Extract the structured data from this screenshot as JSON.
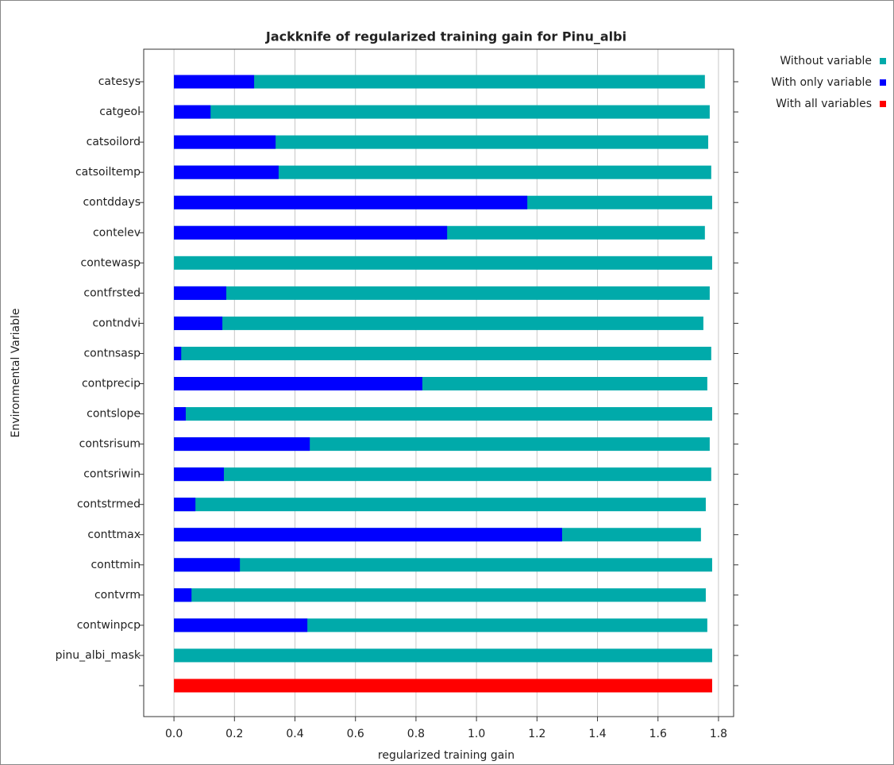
{
  "chart_data": {
    "type": "barh",
    "title": "Jackknife of regularized training gain for Pinu_albi",
    "xlabel": "regularized training gain",
    "ylabel": "Environmental Variable",
    "categories": [
      "catesys",
      "catgeol",
      "catsoilord",
      "catsoiltemp",
      "contddays",
      "contelev",
      "contewasp",
      "contfrsted",
      "contndvi",
      "contnsasp",
      "contprecip",
      "contslope",
      "contsrisum",
      "contsriwin",
      "contstrmed",
      "conttmax",
      "conttmin",
      "contvrm",
      "contwinpcp",
      "pinu_albi_mask",
      null
    ],
    "series": [
      {
        "name": "Without variable",
        "color": "#00aaaa",
        "values": [
          1.755,
          1.771,
          1.766,
          1.776,
          1.779,
          1.755,
          1.779,
          1.771,
          1.75,
          1.776,
          1.763,
          1.779,
          1.771,
          1.776,
          1.758,
          1.742,
          1.779,
          1.758,
          1.763,
          1.779,
          null
        ]
      },
      {
        "name": "With only variable",
        "color": "#0000ff",
        "values": [
          0.265,
          0.121,
          0.336,
          0.346,
          1.168,
          0.903,
          0,
          0.173,
          0.16,
          0.024,
          0.821,
          0.039,
          0.449,
          0.165,
          0.071,
          1.283,
          0.218,
          0.058,
          0.441,
          0,
          null
        ]
      },
      {
        "name": "With all variables",
        "color": "#ff0000",
        "values": [
          null,
          null,
          null,
          null,
          null,
          null,
          null,
          null,
          null,
          null,
          null,
          null,
          null,
          null,
          null,
          null,
          null,
          null,
          null,
          null,
          1.779
        ]
      }
    ],
    "xlim": [
      -0.1,
      1.85
    ],
    "xticks": [
      {
        "value": 0,
        "label": "0.0"
      },
      0.2,
      0.4,
      0.6,
      0.8,
      {
        "value": 1,
        "label": "1.0"
      },
      1.2,
      1.4,
      1.6,
      1.8
    ],
    "grid": true,
    "legend": "right"
  }
}
